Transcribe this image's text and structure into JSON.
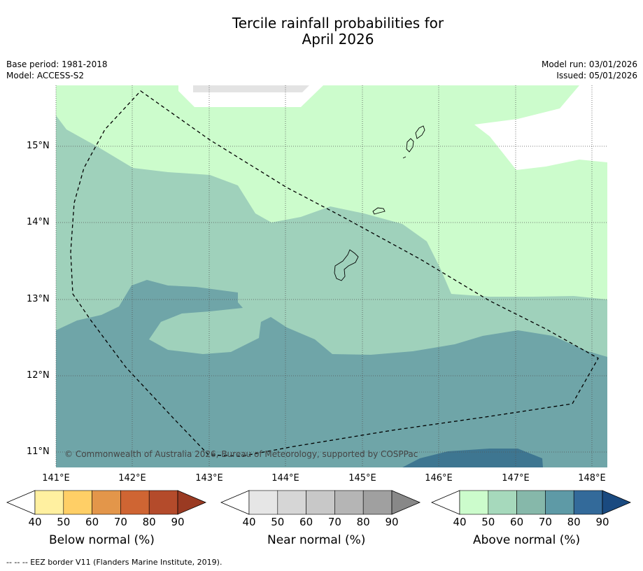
{
  "title_line1": "Tercile rainfall probabilities for",
  "title_line2": "April 2026",
  "meta_left": {
    "base_period": "Base period: 1981-2018",
    "model": "Model: ACCESS-S2"
  },
  "meta_right": {
    "model_run": "Model run: 03/01/2026",
    "issued": "Issued: 05/01/2026"
  },
  "map": {
    "lat_labels": [
      "15°N",
      "14°N",
      "13°N",
      "12°N",
      "11°N"
    ],
    "lon_labels": [
      "141°E",
      "142°E",
      "143°E",
      "144°E",
      "145°E",
      "146°E",
      "147°E",
      "148°E"
    ],
    "copyright": "© Commonwealth of Australia 2026, Bureau of Meteorology, supported by COSPPac"
  },
  "colorbars": [
    {
      "title": "Below normal (%)",
      "ticks": [
        "40",
        "50",
        "60",
        "70",
        "80",
        "90"
      ],
      "colors": [
        "#fff0a0",
        "#ffcf66",
        "#e3964a",
        "#cf6533",
        "#b44b2b",
        "#9a3a22"
      ]
    },
    {
      "title": "Near normal (%)",
      "ticks": [
        "40",
        "50",
        "60",
        "70",
        "80",
        "90"
      ],
      "colors": [
        "#e6e6e6",
        "#d6d6d6",
        "#c8c8c8",
        "#b5b5b5",
        "#a0a0a0",
        "#888888"
      ]
    },
    {
      "title": "Above normal (%)",
      "ticks": [
        "40",
        "50",
        "60",
        "70",
        "80",
        "90"
      ],
      "colors": [
        "#ccfccc",
        "#a6d9bc",
        "#86b8aa",
        "#5e9aa6",
        "#336a9a",
        "#1a4a80"
      ]
    }
  ],
  "footnote": "--  --  -- EEZ border V11 (Flanders Marine Institute, 2019)."
}
